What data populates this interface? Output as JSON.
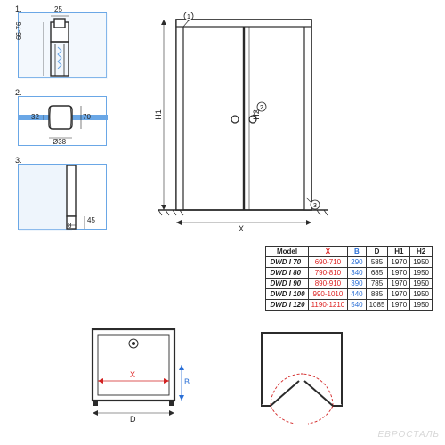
{
  "colors": {
    "blue": "#6aa7e6",
    "blue_fill": "#cfe3f7",
    "red": "#d22222",
    "line": "#2b2b2b"
  },
  "details": {
    "d1": {
      "num": "1.",
      "w_label": "25",
      "h_label": "66-76",
      "panel_stroke": "#6aa7e6",
      "panel_fill": "#cfe3f7"
    },
    "d2": {
      "num": "2.",
      "dia_label": "Ø38",
      "gap_label": "32",
      "depth_label": "70"
    },
    "d3": {
      "num": "3.",
      "w_label": "8",
      "h_label": "45"
    }
  },
  "elevation": {
    "callout1": "1",
    "callout2": "2",
    "callout3": "3",
    "h1_label": "H1",
    "h2_label": "H2",
    "x_label": "X",
    "b_label": "B",
    "d_label": "D"
  },
  "plans": {
    "left": {
      "x_label": "X",
      "b_label": "B",
      "d_label": "D"
    },
    "right": {}
  },
  "table": {
    "headers": [
      "Model",
      "X",
      "B",
      "D",
      "H1",
      "H2"
    ],
    "rows": [
      [
        "DWD I 70",
        "690-710",
        "290",
        "585",
        "1970",
        "1950"
      ],
      [
        "DWD I 80",
        "790-810",
        "340",
        "685",
        "1970",
        "1950"
      ],
      [
        "DWD I 90",
        "890-910",
        "390",
        "785",
        "1970",
        "1950"
      ],
      [
        "DWD I 100",
        "990-1010",
        "440",
        "885",
        "1970",
        "1950"
      ],
      [
        "DWD I 120",
        "1190-1210",
        "540",
        "1085",
        "1970",
        "1950"
      ]
    ]
  },
  "watermark": "ЕВРОСТАЛЬ"
}
